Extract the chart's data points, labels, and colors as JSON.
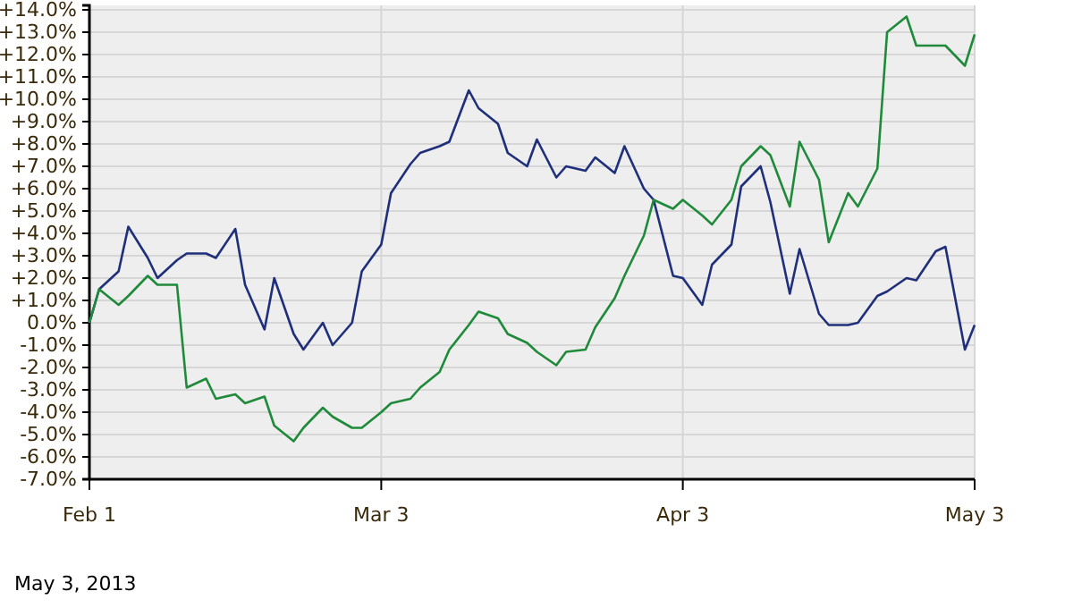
{
  "chart_data": {
    "type": "line",
    "x": [
      "2013-02-01",
      "2013-02-02",
      "2013-02-04",
      "2013-02-05",
      "2013-02-07",
      "2013-02-08",
      "2013-02-10",
      "2013-02-11",
      "2013-02-13",
      "2013-02-14",
      "2013-02-16",
      "2013-02-17",
      "2013-02-19",
      "2013-02-20",
      "2013-02-22",
      "2013-02-23",
      "2013-02-25",
      "2013-02-26",
      "2013-02-28",
      "2013-03-01",
      "2013-03-03",
      "2013-03-04",
      "2013-03-06",
      "2013-03-07",
      "2013-03-09",
      "2013-03-10",
      "2013-03-12",
      "2013-03-13",
      "2013-03-15",
      "2013-03-16",
      "2013-03-18",
      "2013-03-19",
      "2013-03-21",
      "2013-03-22",
      "2013-03-24",
      "2013-03-25",
      "2013-03-27",
      "2013-03-28",
      "2013-03-30",
      "2013-03-31",
      "2013-04-02",
      "2013-04-03",
      "2013-04-05",
      "2013-04-06",
      "2013-04-08",
      "2013-04-09",
      "2013-04-11",
      "2013-04-12",
      "2013-04-14",
      "2013-04-15",
      "2013-04-17",
      "2013-04-18",
      "2013-04-20",
      "2013-04-21",
      "2013-04-23",
      "2013-04-24",
      "2013-04-26",
      "2013-04-27",
      "2013-04-29",
      "2013-04-30",
      "2013-05-02",
      "2013-05-03"
    ],
    "series": [
      {
        "color": "#1f2f7a",
        "values": [
          0,
          1.5,
          2.3,
          4.3,
          2.9,
          2.0,
          2.8,
          3.1,
          3.1,
          2.9,
          4.2,
          1.7,
          -0.3,
          2.0,
          -0.5,
          -1.2,
          0,
          -1.0,
          0,
          2.3,
          3.5,
          5.8,
          7.1,
          7.6,
          7.9,
          8.1,
          10.4,
          9.6,
          8.9,
          7.6,
          7.0,
          8.2,
          6.5,
          7.0,
          6.8,
          7.4,
          6.7,
          7.9,
          6.0,
          5.5,
          2.1,
          2.0,
          0.8,
          2.6,
          3.5,
          6.1,
          7.0,
          5.4,
          1.3,
          3.3,
          0.4,
          -0.1,
          -0.1,
          0.0,
          1.2,
          1.4,
          2.0,
          1.9,
          3.2,
          3.4,
          -1.2,
          -0.1
        ]
      },
      {
        "color": "#1f8a3a",
        "values": [
          0,
          1.5,
          0.8,
          1.2,
          2.1,
          1.7,
          1.7,
          -2.9,
          -2.5,
          -3.4,
          -3.2,
          -3.6,
          -3.3,
          -4.6,
          -5.3,
          -4.7,
          -3.8,
          -4.2,
          -4.7,
          -4.7,
          -4.0,
          -3.6,
          -3.4,
          -2.9,
          -2.2,
          -1.2,
          -0.1,
          0.5,
          0.2,
          -0.5,
          -0.9,
          -1.3,
          -1.9,
          -1.3,
          -1.2,
          -0.2,
          1.1,
          2.1,
          3.9,
          5.5,
          5.1,
          5.5,
          4.8,
          4.4,
          5.5,
          7.0,
          7.9,
          7.5,
          5.2,
          8.1,
          6.4,
          3.6,
          5.8,
          5.2,
          6.9,
          13.0,
          13.7,
          12.4,
          12.4,
          12.4,
          11.5,
          12.9
        ]
      }
    ],
    "xlim": [
      "2013-02-01",
      "2013-05-03"
    ],
    "xticks": [
      {
        "value": "2013-02-01",
        "label": "Feb 1"
      },
      {
        "value": "2013-03-03",
        "label": "Mar 3"
      },
      {
        "value": "2013-04-03",
        "label": "Apr 3"
      },
      {
        "value": "2013-05-03",
        "label": "May 3"
      }
    ],
    "ylim": [
      -7,
      14.2
    ],
    "yticks": [
      {
        "value": -7,
        "label": "-7.0%"
      },
      {
        "value": -6,
        "label": "-6.0%"
      },
      {
        "value": -5,
        "label": "-5.0%"
      },
      {
        "value": -4,
        "label": "-4.0%"
      },
      {
        "value": -3,
        "label": "-3.0%"
      },
      {
        "value": -2,
        "label": "-2.0%"
      },
      {
        "value": -1,
        "label": "-1.0%"
      },
      {
        "value": 0,
        "label": "0.0%"
      },
      {
        "value": 1,
        "label": "+1.0%"
      },
      {
        "value": 2,
        "label": "+2.0%"
      },
      {
        "value": 3,
        "label": "+3.0%"
      },
      {
        "value": 4,
        "label": "+4.0%"
      },
      {
        "value": 5,
        "label": "+5.0%"
      },
      {
        "value": 6,
        "label": "+6.0%"
      },
      {
        "value": 7,
        "label": "+7.0%"
      },
      {
        "value": 8,
        "label": "+8.0%"
      },
      {
        "value": 9,
        "label": "+9.0%"
      },
      {
        "value": 10,
        "label": "+10.0%"
      },
      {
        "value": 11,
        "label": "+11.0%"
      },
      {
        "value": 12,
        "label": "+12.0%"
      },
      {
        "value": 13,
        "label": "+13.0%"
      },
      {
        "value": 14,
        "label": "+14.0%"
      }
    ],
    "grid": true,
    "line_style": "solid",
    "annotations": [
      "May 3, 2013"
    ]
  }
}
